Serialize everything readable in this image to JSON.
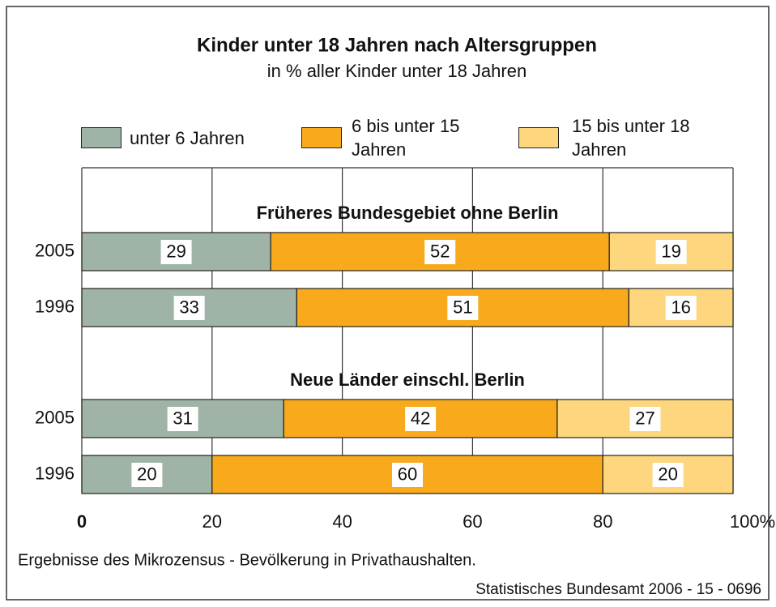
{
  "chart_data": {
    "type": "stacked-barh",
    "title": "Kinder unter 18 Jahren nach Altersgruppen",
    "subtitle": "in % aller Kinder unter 18 Jahren",
    "groups": [
      "Früheres Bundesgebiet ohne Berlin",
      "Neue Länder einschl. Berlin"
    ],
    "categories": [
      "2005",
      "1996",
      "2005",
      "1996"
    ],
    "series": [
      {
        "name": "unter 6 Jahren",
        "color": "#9fb4a7",
        "values": [
          29,
          33,
          31,
          20
        ]
      },
      {
        "name": "6 bis unter 15 Jahren",
        "color": "#f8aa1c",
        "values": [
          52,
          51,
          42,
          60
        ]
      },
      {
        "name": "15 bis unter 18 Jahren",
        "color": "#fdd67e",
        "values": [
          19,
          16,
          27,
          20
        ]
      }
    ],
    "xlim": [
      0,
      100
    ],
    "xticks": [
      0,
      20,
      40,
      60,
      80,
      {
        "value": 100,
        "label": "100%"
      }
    ],
    "grid": true,
    "footnote": "Ergebnisse des Mikrozensus - Bevölkerung in Privathaushalten.",
    "source": "Statistisches Bundesamt 2006 - 15 - 0696"
  }
}
